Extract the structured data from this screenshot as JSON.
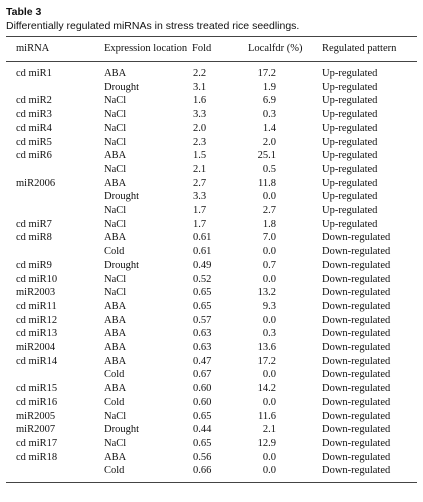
{
  "title": "Table 3",
  "caption": "Differentially regulated miRNAs in stress treated rice seedlings.",
  "table": {
    "header": [
      "miRNA",
      "Expression location",
      "Fold",
      "Localfdr (%)",
      "Regulated pattern"
    ],
    "rows": [
      [
        "cd miR1",
        "ABA",
        "2.2",
        "17.2",
        "Up-regulated"
      ],
      [
        null,
        "Drought",
        "3.1",
        "1.9",
        "Up-regulated"
      ],
      [
        "cd miR2",
        "NaCl",
        "1.6",
        "6.9",
        "Up-regulated"
      ],
      [
        "cd miR3",
        "NaCl",
        "3.3",
        "0.3",
        "Up-regulated"
      ],
      [
        "cd miR4",
        "NaCl",
        "2.0",
        "1.4",
        "Up-regulated"
      ],
      [
        "cd miR5",
        "NaCl",
        "2.3",
        "2.0",
        "Up-regulated"
      ],
      [
        "cd miR6",
        "ABA",
        "1.5",
        "25.1",
        "Up-regulated"
      ],
      [
        null,
        "NaCl",
        "2.1",
        "0.5",
        "Up-regulated"
      ],
      [
        "miR2006",
        "ABA",
        "2.7",
        "11.8",
        "Up-regulated"
      ],
      [
        null,
        "Drought",
        "3.3",
        "0.0",
        "Up-regulated"
      ],
      [
        null,
        "NaCl",
        "1.7",
        "2.7",
        "Up-regulated"
      ],
      [
        "cd miR7",
        "NaCl",
        "1.7",
        "1.8",
        "Up-regulated"
      ],
      [
        "cd miR8",
        "ABA",
        "0.61",
        "7.0",
        "Down-regulated"
      ],
      [
        null,
        "Cold",
        "0.61",
        "0.0",
        "Down-regulated"
      ],
      [
        "cd miR9",
        "Drought",
        "0.49",
        "0.7",
        "Down-regulated"
      ],
      [
        "cd miR10",
        "NaCl",
        "0.52",
        "0.0",
        "Down-regulated"
      ],
      [
        "miR2003",
        "NaCl",
        "0.65",
        "13.2",
        "Down-regulated"
      ],
      [
        "cd miR11",
        "ABA",
        "0.65",
        "9.3",
        "Down-regulated"
      ],
      [
        "cd miR12",
        "ABA",
        "0.57",
        "0.0",
        "Down-regulated"
      ],
      [
        "cd miR13",
        "ABA",
        "0.63",
        "0.3",
        "Down-regulated"
      ],
      [
        "miR2004",
        "ABA",
        "0.63",
        "13.6",
        "Down-regulated"
      ],
      [
        "cd miR14",
        "ABA",
        "0.47",
        "17.2",
        "Down-regulated"
      ],
      [
        null,
        "Cold",
        "0.67",
        "0.0",
        "Down-regulated"
      ],
      [
        "cd miR15",
        "ABA",
        "0.60",
        "14.2",
        "Down-regulated"
      ],
      [
        "cd miR16",
        "Cold",
        "0.60",
        "0.0",
        "Down-regulated"
      ],
      [
        "miR2005",
        "NaCl",
        "0.65",
        "11.6",
        "Down-regulated"
      ],
      [
        "miR2007",
        "Drought",
        "0.44",
        "2.1",
        "Down-regulated"
      ],
      [
        "cd miR17",
        "NaCl",
        "0.65",
        "12.9",
        "Down-regulated"
      ],
      [
        "cd miR18",
        "ABA",
        "0.56",
        "0.0",
        "Down-regulated"
      ],
      [
        null,
        "Cold",
        "0.66",
        "0.0",
        "Down-regulated"
      ]
    ]
  }
}
